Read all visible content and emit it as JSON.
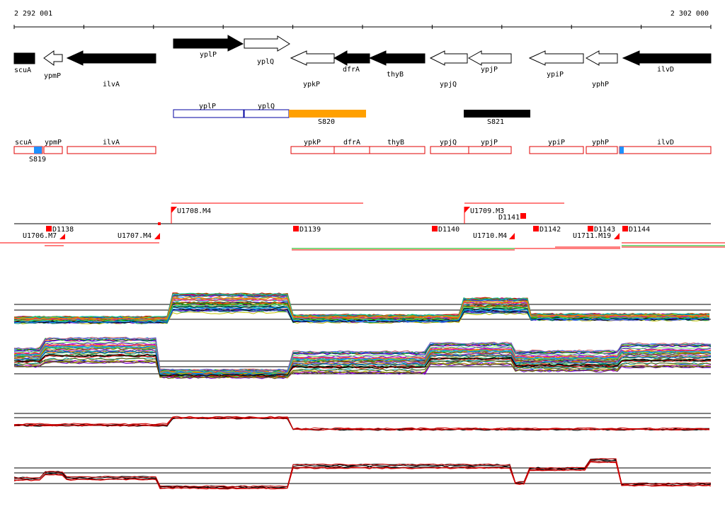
{
  "ruler": {
    "start_label": "2 292 001",
    "end_label": "2 302 000"
  },
  "genes": [
    {
      "name": "scuA",
      "dir": "left",
      "filled": true
    },
    {
      "name": "ypmP",
      "dir": "left",
      "filled": false
    },
    {
      "name": "ilvA",
      "dir": "left",
      "filled": true
    },
    {
      "name": "yplP",
      "dir": "right",
      "filled": true
    },
    {
      "name": "yplQ",
      "dir": "right",
      "filled": false
    },
    {
      "name": "ypkP",
      "dir": "left",
      "filled": false
    },
    {
      "name": "dfrA",
      "dir": "left",
      "filled": true
    },
    {
      "name": "thyB",
      "dir": "left",
      "filled": true
    },
    {
      "name": "ypjQ",
      "dir": "left",
      "filled": false
    },
    {
      "name": "ypjP",
      "dir": "left",
      "filled": false
    },
    {
      "name": "ypiP",
      "dir": "left",
      "filled": false
    },
    {
      "name": "yphP",
      "dir": "left",
      "filled": false
    },
    {
      "name": "ilvD",
      "dir": "left",
      "filled": true
    }
  ],
  "segments_upper": [
    {
      "label": "yplP",
      "style": "blue-outline"
    },
    {
      "label": "yplQ",
      "style": "blue-outline"
    },
    {
      "label": "S820",
      "style": "orange"
    },
    {
      "label": "S821",
      "style": "black"
    }
  ],
  "segments_lower": [
    {
      "label": "scuA"
    },
    {
      "label": "ypmP"
    },
    {
      "label": "ilvA"
    },
    {
      "label": "ypkP"
    },
    {
      "label": "dfrA"
    },
    {
      "label": "thyB"
    },
    {
      "label": "ypjQ"
    },
    {
      "label": "ypjP"
    },
    {
      "label": "ypiP"
    },
    {
      "label": "yphP"
    },
    {
      "label": "ilvD"
    },
    {
      "label": "S819"
    }
  ],
  "features": [
    {
      "label": "U1706.M7"
    },
    {
      "label": "D1138"
    },
    {
      "label": "U1707.M4"
    },
    {
      "label": "U1708.M4"
    },
    {
      "label": "D1139"
    },
    {
      "label": "D1140"
    },
    {
      "label": "U1709.M3"
    },
    {
      "label": "D1141"
    },
    {
      "label": "U1710.M4"
    },
    {
      "label": "D1142"
    },
    {
      "label": "D1143"
    },
    {
      "label": "U1711.M19"
    },
    {
      "label": "D1144"
    }
  ],
  "colors": {
    "gene_fill": "#000000",
    "segment_outline_red": "#e00000",
    "segment_outline_blue": "#0000a0",
    "segment_orange": "#ffa000",
    "marker_blue": "#1e90ff",
    "feature_red": "#ff0000"
  }
}
